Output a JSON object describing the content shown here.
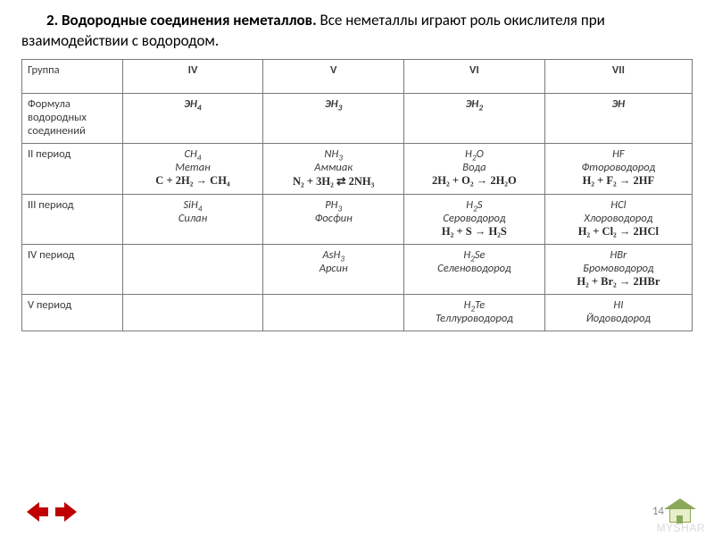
{
  "heading": {
    "bold": "2. Водородные соединения неметаллов.",
    "rest": " Все неметаллы играют роль окислителя при взаимодействии с водородом."
  },
  "table": {
    "colwidths_pct": [
      15,
      21,
      21,
      21,
      22
    ],
    "header_label": "Группа",
    "groups": [
      "IV",
      "V",
      "VI",
      "VII"
    ],
    "rows": [
      {
        "label": "Формула водородных соединений",
        "cells": [
          {
            "f": "ЭН",
            "sub": "4"
          },
          {
            "f": "ЭН",
            "sub": "3"
          },
          {
            "f": "ЭН",
            "sub": "2"
          },
          {
            "f": "ЭН",
            "sub": ""
          }
        ],
        "formula_row": true
      },
      {
        "label": "II период",
        "cells": [
          {
            "f": "CH",
            "sub": "4",
            "name": "Метан",
            "eq": "C + 2H₂ → CH₄"
          },
          {
            "f": "NH",
            "sub": "3",
            "name": "Аммиак",
            "eq": "N₂ + 3H₂ ⇄ 2NH₃"
          },
          {
            "f": "H",
            "sub": "2",
            "f2": "O",
            "name": "Вода",
            "eq": "2H₂ + O₂ → 2H₂O"
          },
          {
            "f": "HF",
            "name": "Фтороводород",
            "eq": "H₂ + F₂ → 2HF"
          }
        ]
      },
      {
        "label": "III период",
        "cells": [
          {
            "f": "SiH",
            "sub": "4",
            "name": "Силан"
          },
          {
            "f": "PH",
            "sub": "3",
            "name": "Фосфин"
          },
          {
            "f": "H",
            "sub": "2",
            "f2": "S",
            "name": "Сероводород",
            "eq": "H₂ + S → H₂S"
          },
          {
            "f": "HCl",
            "name": "Хлороводород",
            "eq": "H₂ + Cl₂ → 2HCl"
          }
        ]
      },
      {
        "label": "IV период",
        "cells": [
          {
            "empty": true
          },
          {
            "f": "AsH",
            "sub": "3",
            "name": "Арсин"
          },
          {
            "f": "H",
            "sub": "2",
            "f2": "Se",
            "name": "Селеноводород"
          },
          {
            "f": "HBr",
            "name": "Бромоводород",
            "eq": "H₂ + Br₂ → 2HBr"
          }
        ]
      },
      {
        "label": "V период",
        "cells": [
          {
            "empty": true
          },
          {
            "empty": true
          },
          {
            "f": "H",
            "sub": "2",
            "f2": "Te",
            "name": "Теллуроводород"
          },
          {
            "f": "HI",
            "name": "Йодоводород"
          }
        ]
      }
    ]
  },
  "page_number": "14",
  "watermark": "MYSHAR",
  "colors": {
    "arrow": "#c00000",
    "home_fill": "#e7efc8",
    "home_edge": "#8aa85a",
    "text": "#3a3a3a",
    "border": "#7a7a7a"
  }
}
